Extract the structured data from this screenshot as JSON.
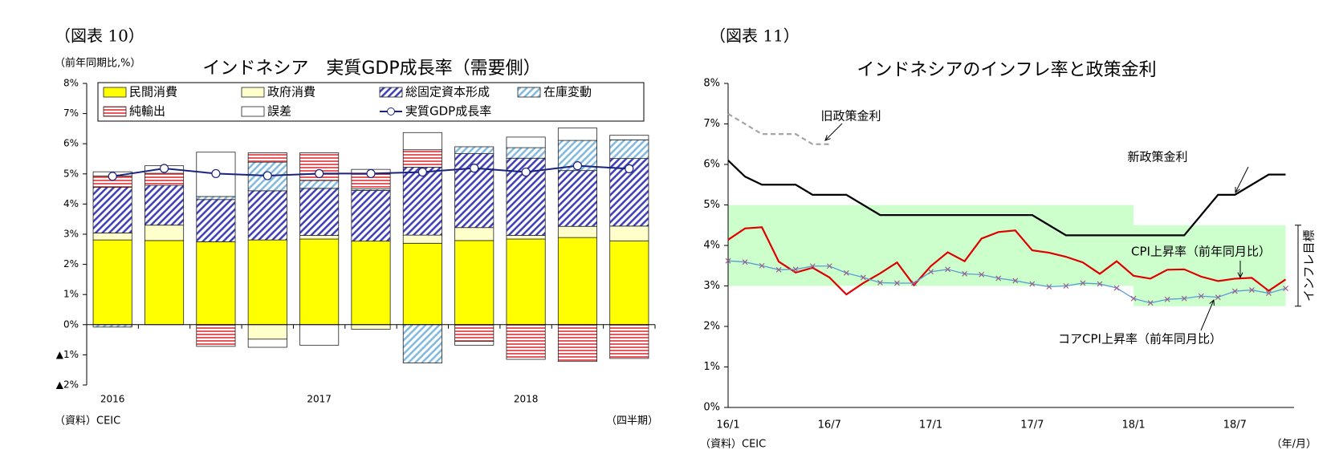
{
  "chart_data": [
    {
      "type": "bar",
      "stacked": true,
      "label": "（図表 10）",
      "title": "インドネシア　実質GDP成長率（需要側）",
      "y_axis_label": "（前年同期比,%）",
      "source": "（資料）CEIC",
      "x_axis_label": "（四半期）",
      "categories": [
        "2016",
        null,
        null,
        null,
        "2017",
        null,
        null,
        null,
        "2018",
        null,
        null
      ],
      "ylim": [
        -2,
        8
      ],
      "yticks": [
        {
          "value": -2,
          "label": "▲2%"
        },
        {
          "value": -1,
          "label": "▲1%"
        },
        {
          "value": 0,
          "label": "0%"
        },
        {
          "value": 1,
          "label": "1%"
        },
        {
          "value": 2,
          "label": "2%"
        },
        {
          "value": 3,
          "label": "3%"
        },
        {
          "value": 4,
          "label": "4%"
        },
        {
          "value": 5,
          "label": "5%"
        },
        {
          "value": 6,
          "label": "6%"
        },
        {
          "value": 7,
          "label": "7%"
        },
        {
          "value": 8,
          "label": "8%"
        }
      ],
      "legend": "top",
      "series": [
        {
          "name": "民間消費",
          "color": "#ffff00",
          "values": [
            2.81,
            2.79,
            2.75,
            2.81,
            2.84,
            2.77,
            2.7,
            2.79,
            2.84,
            2.89,
            2.78
          ]
        },
        {
          "name": "政府消費",
          "color": "#ffffcc",
          "values": [
            0.23,
            0.51,
            0,
            -0.48,
            0.12,
            -0.15,
            0.27,
            0.43,
            0.12,
            0.37,
            0.49
          ]
        },
        {
          "name": "総固定資本形成",
          "color": "#3c3cb4",
          "hatch": "diagonal",
          "values": [
            1.52,
            1.32,
            1.4,
            1.63,
            1.56,
            1.68,
            2.25,
            2.45,
            2.56,
            1.85,
            2.24
          ]
        },
        {
          "name": "在庫変動",
          "color": "#7fb8dc",
          "hatch": "diagonal",
          "values": [
            -0.08,
            0,
            0.1,
            0.95,
            0.26,
            0.05,
            -1.27,
            0.23,
            0.35,
            1.0,
            0.62
          ]
        },
        {
          "name": "純輸出",
          "color": "#e8585c",
          "hatch": "horizontal",
          "values": [
            0.37,
            0.4,
            -0.72,
            0.31,
            0.92,
            0.5,
            0.58,
            -0.55,
            -1.15,
            -1.22,
            -1.12
          ]
        },
        {
          "name": "誤差",
          "color": "#ffffff",
          "values": [
            0.14,
            0.25,
            1.47,
            -0.27,
            -0.68,
            0.15,
            0.57,
            -0.13,
            0.35,
            0.41,
            0.15
          ]
        },
        {
          "name": "実質GDP成長率",
          "type": "line",
          "color": "#1a237e",
          "marker": "circle",
          "values": [
            4.92,
            5.18,
            5.01,
            4.94,
            5.01,
            5.01,
            5.06,
            5.19,
            5.06,
            5.27,
            5.17
          ]
        }
      ]
    },
    {
      "type": "line",
      "label": "（図表 11）",
      "title": "インドネシアのインフレ率と政策金利",
      "source": "（資料）CEIC",
      "x_axis_label": "（年/月）",
      "categories": [
        "16/1",
        null,
        null,
        null,
        null,
        null,
        "16/7",
        null,
        null,
        null,
        null,
        null,
        "17/1",
        null,
        null,
        null,
        null,
        null,
        "17/7",
        null,
        null,
        null,
        null,
        null,
        "18/1",
        null,
        null,
        null,
        null,
        null,
        "18/7",
        null,
        null,
        null
      ],
      "ylim": [
        0,
        8
      ],
      "yticks": [
        {
          "value": 0,
          "label": "0%"
        },
        {
          "value": 1,
          "label": "1%"
        },
        {
          "value": 2,
          "label": "2%"
        },
        {
          "value": 3,
          "label": "3%"
        },
        {
          "value": 4,
          "label": "4%"
        },
        {
          "value": 5,
          "label": "5%"
        },
        {
          "value": 6,
          "label": "6%"
        },
        {
          "value": 7,
          "label": "7%"
        },
        {
          "value": 8,
          "label": "8%"
        }
      ],
      "inflation_target": {
        "label": "インフレ目標",
        "color": "#ccffcc",
        "bands": [
          {
            "x": [
              0,
              24
            ],
            "range": [
              3,
              5
            ]
          },
          {
            "x": [
              24,
              33
            ],
            "range": [
              2.5,
              4.5
            ]
          }
        ]
      },
      "series": [
        {
          "name": "旧政策金利",
          "color": "#a6a6a6",
          "dash": true,
          "values": [
            7.25,
            7.0,
            6.75,
            6.75,
            6.75,
            6.5,
            6.5,
            null,
            null,
            null,
            null,
            null,
            null,
            null,
            null,
            null,
            null,
            null,
            null,
            null,
            null,
            null,
            null,
            null,
            null,
            null,
            null,
            null,
            null,
            null,
            null,
            null,
            null,
            null
          ]
        },
        {
          "name": "新政策金利",
          "color": "#000000",
          "values": [
            6.1,
            5.7,
            5.5,
            5.5,
            5.5,
            5.25,
            5.25,
            5.25,
            5.0,
            4.75,
            4.75,
            4.75,
            4.75,
            4.75,
            4.75,
            4.75,
            4.75,
            4.75,
            4.75,
            4.5,
            4.25,
            4.25,
            4.25,
            4.25,
            4.25,
            4.25,
            4.25,
            4.25,
            4.75,
            5.25,
            5.25,
            5.5,
            5.75,
            5.75
          ]
        },
        {
          "name": "CPI上昇率（前年同月比）",
          "color": "#e00000",
          "values": [
            4.14,
            4.42,
            4.45,
            3.6,
            3.33,
            3.45,
            3.21,
            2.79,
            3.07,
            3.31,
            3.58,
            3.02,
            3.49,
            3.83,
            3.61,
            4.17,
            4.33,
            4.37,
            3.88,
            3.82,
            3.72,
            3.58,
            3.3,
            3.61,
            3.25,
            3.18,
            3.4,
            3.41,
            3.23,
            3.12,
            3.18,
            3.2,
            2.88,
            3.16
          ]
        },
        {
          "name": "コアCPI上昇率（前年同月比）",
          "color": "#5b9bd5",
          "marker": "x",
          "marker_color": "#9b5f8a",
          "values": [
            3.62,
            3.59,
            3.5,
            3.4,
            3.41,
            3.49,
            3.49,
            3.32,
            3.21,
            3.08,
            3.07,
            3.07,
            3.35,
            3.41,
            3.3,
            3.28,
            3.19,
            3.13,
            3.05,
            2.98,
            3.0,
            3.07,
            3.05,
            2.95,
            2.69,
            2.58,
            2.67,
            2.69,
            2.75,
            2.72,
            2.87,
            2.9,
            2.82,
            2.94
          ]
        }
      ]
    }
  ]
}
